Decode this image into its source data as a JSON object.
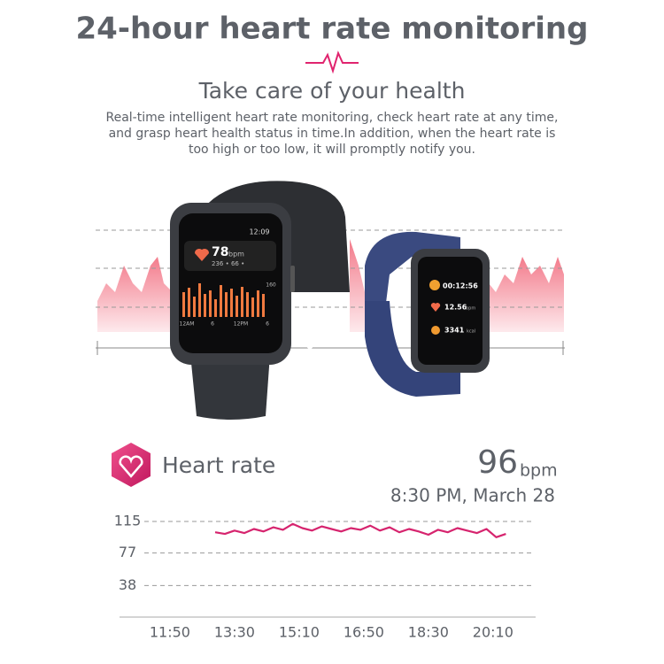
{
  "header": {
    "title": "24-hour heart rate monitoring",
    "subtitle": "Take care of your health",
    "lines": [
      "Real-time intelligent heart rate monitoring, check heart rate at any time,",
      "and grasp heart health status in time.In addition, when the heart rate is",
      "too high or too low, it will promptly notify you."
    ]
  },
  "watch_large": {
    "time": "12:09",
    "rate": "78",
    "unit": "bpm",
    "stats": "236 • 66 •",
    "scale": "160",
    "axis": [
      "12AM",
      "6",
      "12PM",
      "6"
    ]
  },
  "watch_small": {
    "timer": "00:12:56",
    "distance": "12.56",
    "distance_unit": "bpm",
    "calories": "3341",
    "calories_unit": "kcal"
  },
  "card": {
    "label": "Heart rate",
    "value": "96",
    "unit": "bpm",
    "date": "8:30 PM, March 28"
  },
  "chart_data": {
    "type": "line",
    "color": "#d6246e",
    "x": [
      780,
      795,
      810,
      825,
      840,
      855,
      870,
      885,
      900,
      915,
      930,
      945,
      960,
      975,
      990,
      1005,
      1020,
      1035,
      1050,
      1065,
      1080,
      1095,
      1110,
      1125,
      1140,
      1155,
      1170,
      1185,
      1200,
      1215,
      1230
    ],
    "values": [
      102,
      100,
      104,
      101,
      106,
      103,
      108,
      105,
      112,
      107,
      104,
      109,
      106,
      103,
      107,
      105,
      110,
      104,
      108,
      102,
      106,
      103,
      99,
      105,
      102,
      107,
      104,
      101,
      106,
      96,
      100
    ],
    "xlim": [
      632,
      1276
    ],
    "xticks": [
      {
        "value": 710,
        "label": "11:50"
      },
      {
        "value": 810,
        "label": "13:30"
      },
      {
        "value": 910,
        "label": "15:10"
      },
      {
        "value": 1010,
        "label": "16:50"
      },
      {
        "value": 1110,
        "label": "18:30"
      },
      {
        "value": 1210,
        "label": "20:10"
      }
    ],
    "ylim": [
      0,
      115
    ],
    "yticks": [
      115,
      77,
      38
    ],
    "grid": true
  }
}
